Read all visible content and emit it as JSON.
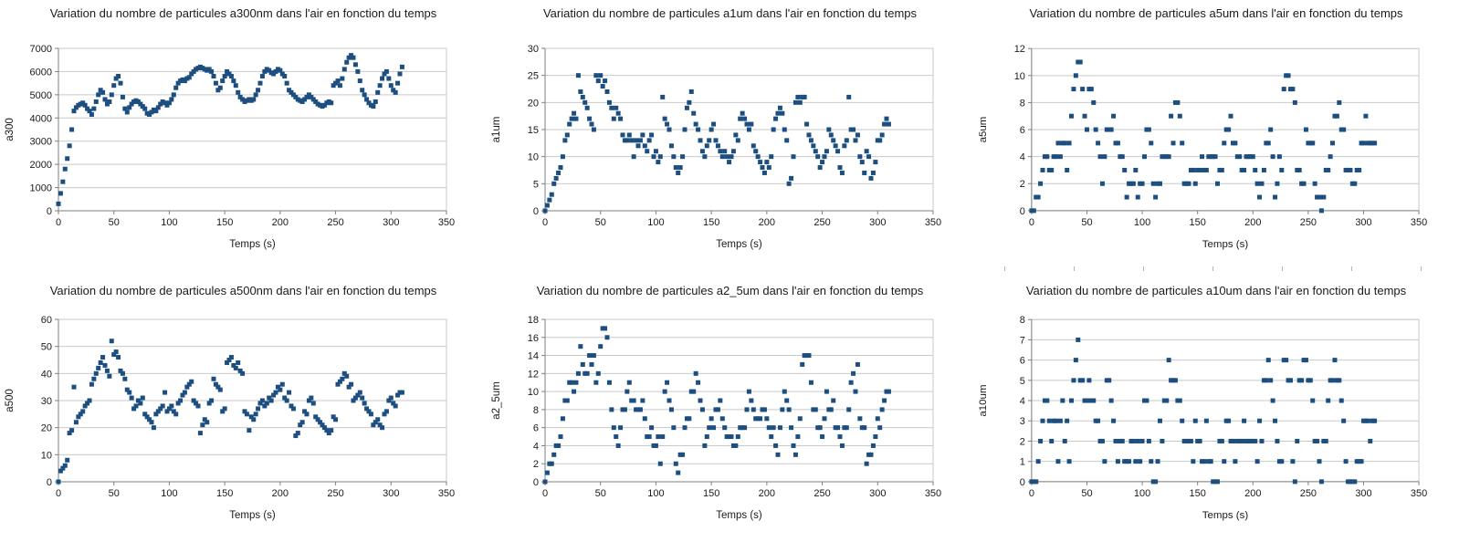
{
  "page": {
    "background": "#ffffff",
    "style": {
      "marker_color": "#1C4E80",
      "gridline_color": "#c9c9c9",
      "axis_color": "#7f7f7f",
      "text_color": "#1a1a1a"
    }
  },
  "decor": {
    "remnant_tick_row": {
      "count": 7,
      "spacing": 76,
      "color": "#b4b4b4"
    }
  },
  "chart_data": [
    {
      "type": "scatter",
      "title": "Variation du nombre de particules a300nm dans l'air en fonction du temps",
      "xlabel": "Temps (s)",
      "ylabel": "a300",
      "xlim": [
        0,
        350
      ],
      "ylim": [
        0,
        7000
      ],
      "xticks": [
        0,
        50,
        100,
        150,
        200,
        250,
        300,
        350
      ],
      "yticks": [
        0,
        1000,
        2000,
        3000,
        4000,
        5000,
        6000,
        7000
      ],
      "grid": "horizontal",
      "legend": "none",
      "marker": "square",
      "marker_color": "#1C4E80",
      "x_start": 0,
      "x_step": 2,
      "values": [
        300,
        750,
        1250,
        1800,
        2250,
        2800,
        3500,
        4300,
        4450,
        4550,
        4600,
        4650,
        4550,
        4400,
        4300,
        4150,
        4400,
        4700,
        5000,
        5200,
        5100,
        4800,
        4600,
        4700,
        5000,
        5400,
        5700,
        5800,
        5500,
        4900,
        4400,
        4250,
        4450,
        4600,
        4700,
        4750,
        4700,
        4600,
        4500,
        4400,
        4200,
        4150,
        4250,
        4350,
        4300,
        4450,
        4600,
        4700,
        4650,
        4550,
        4650,
        4800,
        5000,
        5300,
        5500,
        5600,
        5650,
        5600,
        5700,
        5750,
        5900,
        6000,
        6100,
        6150,
        6200,
        6150,
        6100,
        6050,
        6100,
        6000,
        5800,
        5500,
        5200,
        5300,
        5600,
        5800,
        6000,
        5900,
        5800,
        5600,
        5400,
        5100,
        4900,
        4800,
        4700,
        4750,
        4800,
        4750,
        4800,
        5000,
        5200,
        5500,
        5800,
        6000,
        6100,
        6050,
        5950,
        5900,
        6000,
        6100,
        6050,
        5900,
        5800,
        5500,
        5200,
        5100,
        5000,
        4900,
        4800,
        4750,
        4700,
        4800,
        4900,
        5000,
        4900,
        4800,
        4700,
        4600,
        4550,
        4500,
        4550,
        4650,
        4700,
        4650,
        5400,
        5500,
        5600,
        5400,
        5700,
        6100,
        6400,
        6600,
        6700,
        6600,
        6300,
        6000,
        5600,
        5200,
        5000,
        4800,
        4650,
        4550,
        4500,
        4700,
        5100,
        5400,
        5700,
        5900,
        6000,
        5700,
        5400,
        5200,
        5100,
        5500,
        5900,
        6200
      ]
    },
    {
      "type": "scatter",
      "title": "Variation du nombre de particules a1um dans l'air en fonction du temps",
      "xlabel": "Temps (s)",
      "ylabel": "a1um",
      "xlim": [
        0,
        350
      ],
      "ylim": [
        0,
        30
      ],
      "xticks": [
        0,
        50,
        100,
        150,
        200,
        250,
        300,
        350
      ],
      "yticks": [
        0,
        5,
        10,
        15,
        20,
        25,
        30
      ],
      "grid": "horizontal",
      "legend": "none",
      "marker": "square",
      "marker_color": "#1C4E80",
      "x_start": 0,
      "x_step": 2,
      "values": [
        0,
        1,
        2,
        3,
        5,
        6,
        7,
        8,
        10,
        13,
        14,
        16,
        17,
        18,
        17,
        25,
        22,
        21,
        20,
        19,
        17,
        16,
        15,
        25,
        24,
        25,
        23,
        24,
        22,
        20,
        19,
        17,
        19,
        18,
        17,
        14,
        13,
        13,
        14,
        13,
        10,
        13,
        12,
        13,
        14,
        12,
        11,
        13,
        14,
        10,
        11,
        9,
        10,
        21,
        17,
        16,
        15,
        12,
        10,
        8,
        7,
        8,
        10,
        15,
        19,
        20,
        22,
        18,
        16,
        15,
        13,
        11,
        10,
        12,
        13,
        15,
        16,
        13,
        12,
        11,
        10,
        11,
        10,
        9,
        10,
        11,
        14,
        13,
        17,
        18,
        17,
        16,
        15,
        16,
        12,
        11,
        10,
        9,
        8,
        7,
        9,
        8,
        10,
        15,
        17,
        18,
        19,
        18,
        15,
        13,
        5,
        6,
        10,
        20,
        21,
        20,
        21,
        21,
        16,
        14,
        13,
        12,
        11,
        10,
        8,
        9,
        10,
        11,
        15,
        14,
        13,
        12,
        11,
        8,
        7,
        12,
        13,
        21,
        15,
        15,
        13,
        14,
        10,
        9,
        7,
        11,
        10,
        6,
        7,
        9,
        13,
        13,
        14,
        16,
        17,
        16
      ]
    },
    {
      "type": "scatter",
      "title": "Variation du nombre de particules a5um dans l'air en fonction du temps",
      "xlabel": "Temps (s)",
      "ylabel": "a5um",
      "xlim": [
        0,
        350
      ],
      "ylim": [
        0,
        12
      ],
      "xticks": [
        0,
        50,
        100,
        150,
        200,
        250,
        300,
        350
      ],
      "yticks": [
        0,
        2,
        4,
        6,
        8,
        10,
        12
      ],
      "grid": "horizontal",
      "legend": "none",
      "marker": "square",
      "marker_color": "#1C4E80",
      "x_start": 0,
      "x_step": 2,
      "values": [
        0,
        0,
        1,
        1,
        2,
        3,
        4,
        4,
        3,
        3,
        4,
        4,
        5,
        4,
        5,
        5,
        3,
        5,
        7,
        9,
        10,
        11,
        11,
        9,
        7,
        6,
        9,
        9,
        8,
        6,
        5,
        4,
        2,
        4,
        6,
        6,
        6,
        7,
        5,
        5,
        4,
        4,
        3,
        1,
        2,
        2,
        2,
        3,
        1,
        2,
        2,
        4,
        6,
        6,
        5,
        2,
        1,
        2,
        2,
        4,
        4,
        4,
        4,
        7,
        5,
        8,
        8,
        7,
        5,
        2,
        2,
        2,
        3,
        3,
        2,
        3,
        3,
        4,
        3,
        3,
        4,
        4,
        4,
        4,
        2,
        3,
        3,
        5,
        6,
        6,
        7,
        5,
        5,
        4,
        4,
        3,
        3,
        4,
        4,
        4,
        4,
        3,
        2,
        1,
        2,
        3,
        5,
        5,
        6,
        4,
        1,
        2,
        4,
        3,
        9,
        10,
        10,
        9,
        9,
        8,
        3,
        3,
        2,
        2,
        6,
        5,
        5,
        5,
        2,
        1,
        1,
        0,
        1,
        3,
        3,
        4,
        5,
        7,
        7,
        8,
        6,
        6,
        3,
        3,
        3,
        2,
        2,
        3,
        3,
        5,
        5,
        7,
        5,
        5,
        5,
        5
      ]
    },
    {
      "type": "scatter",
      "title": "Variation du nombre de particules a500nm dans l'air en fonction du temps",
      "xlabel": "Temps (s)",
      "ylabel": "a500",
      "xlim": [
        0,
        350
      ],
      "ylim": [
        0,
        60
      ],
      "xticks": [
        0,
        50,
        100,
        150,
        200,
        250,
        300,
        350
      ],
      "yticks": [
        0,
        10,
        20,
        30,
        40,
        50,
        60
      ],
      "grid": "horizontal",
      "legend": "none",
      "marker": "square",
      "marker_color": "#1C4E80",
      "x_start": 0,
      "x_step": 2,
      "values": [
        0,
        4,
        5,
        6,
        8,
        18,
        19,
        35,
        22,
        24,
        25,
        26,
        28,
        29,
        30,
        36,
        38,
        40,
        42,
        44,
        46,
        43,
        41,
        39,
        52,
        47,
        48,
        46,
        41,
        40,
        38,
        34,
        33,
        31,
        27,
        28,
        30,
        29,
        31,
        25,
        24,
        23,
        22,
        20,
        25,
        26,
        27,
        28,
        33,
        26,
        27,
        28,
        26,
        25,
        29,
        30,
        32,
        33,
        35,
        36,
        37,
        30,
        29,
        28,
        18,
        21,
        23,
        22,
        29,
        30,
        38,
        36,
        35,
        34,
        26,
        27,
        44,
        45,
        46,
        43,
        42,
        44,
        41,
        40,
        26,
        25,
        19,
        24,
        23,
        25,
        27,
        29,
        30,
        28,
        29,
        31,
        30,
        32,
        33,
        35,
        34,
        36,
        31,
        30,
        33,
        28,
        27,
        17,
        18,
        21,
        22,
        26,
        25,
        30,
        31,
        29,
        24,
        23,
        22,
        21,
        20,
        19,
        18,
        19,
        24,
        23,
        36,
        37,
        38,
        40,
        39,
        35,
        36,
        30,
        31,
        32,
        33,
        31,
        29,
        27,
        26,
        25,
        21,
        22,
        23,
        21,
        20,
        25,
        26,
        30,
        31,
        29,
        28,
        32,
        33,
        33
      ]
    },
    {
      "type": "scatter",
      "title": "Variation du nombre de particules a2_5um dans l'air en fonction du temps",
      "xlabel": "Temps (s)",
      "ylabel": "a2_5um",
      "xlim": [
        0,
        350
      ],
      "ylim": [
        0,
        18
      ],
      "xticks": [
        0,
        50,
        100,
        150,
        200,
        250,
        300,
        350
      ],
      "yticks": [
        0,
        2,
        4,
        6,
        8,
        10,
        12,
        14,
        16,
        18
      ],
      "grid": "horizontal",
      "legend": "none",
      "marker": "square",
      "marker_color": "#1C4E80",
      "x_start": 0,
      "x_step": 2,
      "values": [
        0,
        1,
        2,
        2,
        3,
        4,
        4,
        5,
        7,
        9,
        9,
        11,
        11,
        10,
        11,
        12,
        15,
        13,
        12,
        12,
        14,
        13,
        14,
        11,
        12,
        15,
        17,
        17,
        16,
        11,
        8,
        6,
        5,
        4,
        6,
        8,
        8,
        10,
        11,
        9,
        9,
        8,
        8,
        8,
        9,
        7,
        5,
        5,
        6,
        4,
        4,
        5,
        2,
        5,
        10,
        11,
        9,
        8,
        6,
        2,
        1,
        3,
        3,
        6,
        7,
        7,
        10,
        10,
        12,
        11,
        9,
        8,
        4,
        5,
        6,
        7,
        6,
        8,
        8,
        9,
        7,
        6,
        5,
        5,
        5,
        4,
        4,
        5,
        6,
        6,
        6,
        8,
        10,
        9,
        8,
        7,
        7,
        7,
        8,
        8,
        7,
        6,
        5,
        6,
        4,
        3,
        6,
        8,
        10,
        9,
        8,
        6,
        4,
        3,
        5,
        7,
        13,
        14,
        14,
        14,
        11,
        8,
        8,
        6,
        6,
        5,
        7,
        10,
        8,
        8,
        9,
        6,
        6,
        5,
        4,
        6,
        6,
        8,
        11,
        12,
        10,
        13,
        7,
        6,
        6,
        2,
        3,
        3,
        4,
        5,
        7,
        6,
        8,
        9,
        10,
        10
      ]
    },
    {
      "type": "scatter",
      "title": "Variation du nombre de particules a10um dans l'air en fonction du temps",
      "xlabel": "Temps (s)",
      "ylabel": "a10um",
      "xlim": [
        0,
        350
      ],
      "ylim": [
        0,
        8
      ],
      "xticks": [
        0,
        50,
        100,
        150,
        200,
        250,
        300,
        350
      ],
      "yticks": [
        0,
        1,
        2,
        3,
        4,
        5,
        6,
        7,
        8
      ],
      "grid": "horizontal",
      "legend": "none",
      "marker": "square",
      "marker_color": "#1C4E80",
      "x_start": 0,
      "x_step": 2,
      "values": [
        0,
        0,
        0,
        1,
        2,
        3,
        4,
        4,
        3,
        2,
        3,
        3,
        1,
        3,
        4,
        2,
        3,
        1,
        4,
        5,
        6,
        7,
        5,
        5,
        4,
        4,
        5,
        4,
        4,
        3,
        3,
        2,
        2,
        1,
        5,
        5,
        4,
        3,
        2,
        1,
        2,
        2,
        1,
        1,
        1,
        2,
        2,
        1,
        2,
        1,
        2,
        4,
        4,
        2,
        1,
        0,
        0,
        1,
        3,
        2,
        4,
        4,
        6,
        5,
        5,
        5,
        4,
        4,
        3,
        2,
        2,
        2,
        2,
        1,
        3,
        2,
        2,
        1,
        1,
        3,
        1,
        1,
        0,
        0,
        0,
        2,
        2,
        1,
        3,
        3,
        2,
        2,
        1,
        2,
        2,
        2,
        3,
        2,
        2,
        2,
        2,
        2,
        1,
        3,
        2,
        5,
        5,
        6,
        5,
        4,
        3,
        2,
        1,
        1,
        6,
        6,
        5,
        5,
        1,
        0,
        2,
        5,
        5,
        6,
        6,
        5,
        5,
        4,
        2,
        2,
        1,
        0,
        2,
        2,
        4,
        5,
        5,
        6,
        5,
        5,
        4,
        3,
        1,
        0,
        0,
        0,
        0,
        1,
        1,
        1,
        3,
        3,
        3,
        2,
        3,
        3
      ]
    }
  ]
}
